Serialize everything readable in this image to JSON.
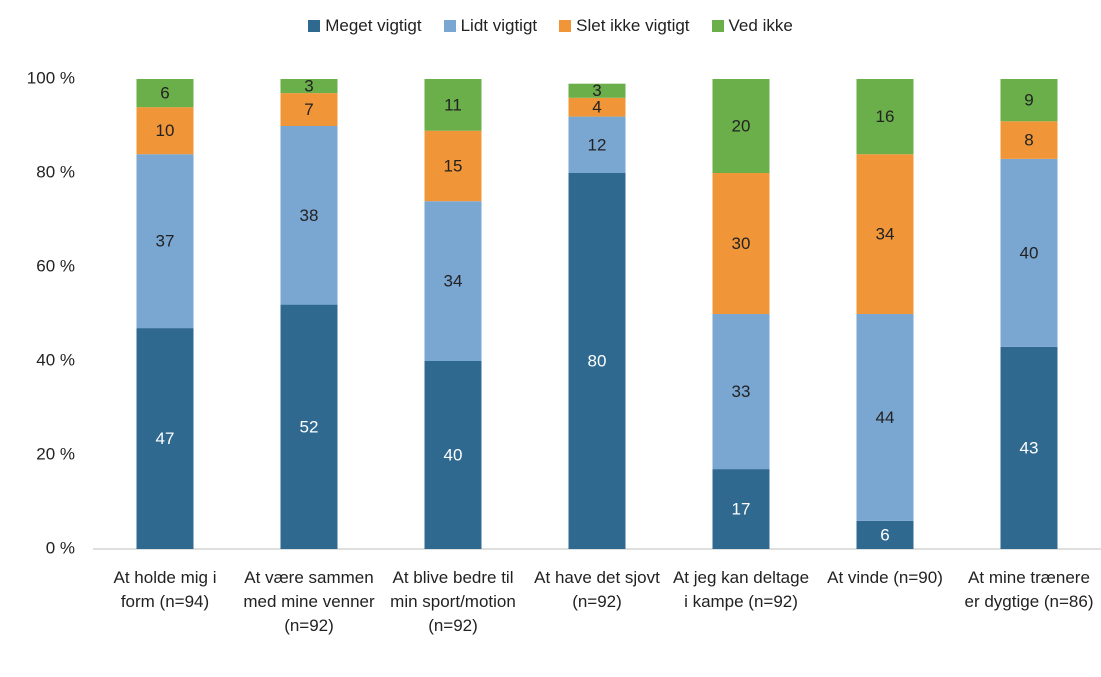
{
  "chart_data": {
    "type": "stacked_bar",
    "categories": [
      "At holde mig i form (n=94)",
      "At være sammen med mine venner (n=92)",
      "At blive bedre til min sport/motion (n=92)",
      "At have det sjovt (n=92)",
      "At jeg kan deltage i kampe (n=92)",
      "At vinde (n=90)",
      "At mine trænere er dygtige (n=86)"
    ],
    "series": [
      {
        "name": "Meget vigtigt",
        "color": "#2f6990",
        "values": [
          47,
          52,
          40,
          80,
          17,
          6,
          43
        ]
      },
      {
        "name": "Lidt vigtigt",
        "color": "#7aa6d2",
        "values": [
          37,
          38,
          34,
          12,
          33,
          44,
          40
        ]
      },
      {
        "name": "Slet ikke vigtigt",
        "color": "#f09638",
        "values": [
          10,
          7,
          15,
          4,
          30,
          34,
          8
        ]
      },
      {
        "name": "Ved ikke",
        "color": "#6aaf4a",
        "values": [
          6,
          3,
          11,
          3,
          20,
          16,
          9
        ]
      }
    ],
    "ylim": [
      0,
      100
    ],
    "yticks": [
      {
        "value": 0,
        "label": "0 %"
      },
      {
        "value": 20,
        "label": "20 %"
      },
      {
        "value": 40,
        "label": "40 %"
      },
      {
        "value": 60,
        "label": "60 %"
      },
      {
        "value": 80,
        "label": "80 %"
      },
      {
        "value": 100,
        "label": "100 %"
      }
    ],
    "grid": false,
    "legend": "top"
  }
}
